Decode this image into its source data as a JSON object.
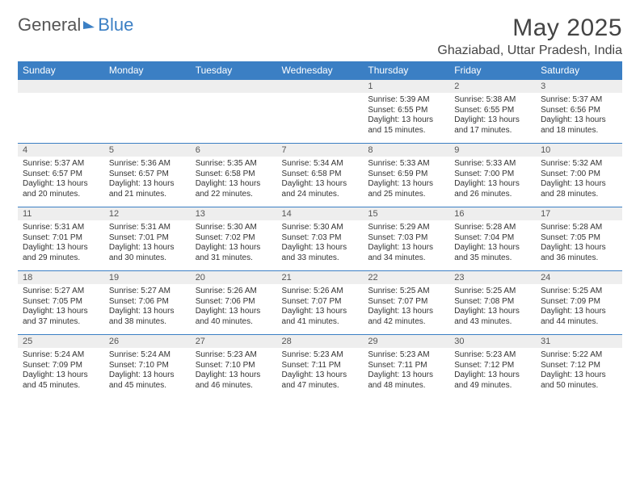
{
  "logo": {
    "text_a": "General",
    "text_b": "Blue"
  },
  "title": "May 2025",
  "location": "Ghaziabad, Uttar Pradesh, India",
  "weekdays": [
    "Sunday",
    "Monday",
    "Tuesday",
    "Wednesday",
    "Thursday",
    "Friday",
    "Saturday"
  ],
  "colors": {
    "header_bg": "#3b7fc4",
    "header_text": "#ffffff",
    "daynum_bg": "#eeeeee",
    "row_border": "#3b7fc4",
    "body_text": "#333333",
    "page_bg": "#ffffff"
  },
  "typography": {
    "title_fontsize": 30,
    "location_fontsize": 16,
    "weekday_fontsize": 12,
    "daynum_fontsize": 11,
    "cell_fontsize": 10
  },
  "layout": {
    "columns": 7,
    "rows": 5,
    "first_day_column_index": 4
  },
  "days": [
    {
      "n": 1,
      "sunrise": "5:39 AM",
      "sunset": "6:55 PM",
      "daylight": "13 hours and 15 minutes."
    },
    {
      "n": 2,
      "sunrise": "5:38 AM",
      "sunset": "6:55 PM",
      "daylight": "13 hours and 17 minutes."
    },
    {
      "n": 3,
      "sunrise": "5:37 AM",
      "sunset": "6:56 PM",
      "daylight": "13 hours and 18 minutes."
    },
    {
      "n": 4,
      "sunrise": "5:37 AM",
      "sunset": "6:57 PM",
      "daylight": "13 hours and 20 minutes."
    },
    {
      "n": 5,
      "sunrise": "5:36 AM",
      "sunset": "6:57 PM",
      "daylight": "13 hours and 21 minutes."
    },
    {
      "n": 6,
      "sunrise": "5:35 AM",
      "sunset": "6:58 PM",
      "daylight": "13 hours and 22 minutes."
    },
    {
      "n": 7,
      "sunrise": "5:34 AM",
      "sunset": "6:58 PM",
      "daylight": "13 hours and 24 minutes."
    },
    {
      "n": 8,
      "sunrise": "5:33 AM",
      "sunset": "6:59 PM",
      "daylight": "13 hours and 25 minutes."
    },
    {
      "n": 9,
      "sunrise": "5:33 AM",
      "sunset": "7:00 PM",
      "daylight": "13 hours and 26 minutes."
    },
    {
      "n": 10,
      "sunrise": "5:32 AM",
      "sunset": "7:00 PM",
      "daylight": "13 hours and 28 minutes."
    },
    {
      "n": 11,
      "sunrise": "5:31 AM",
      "sunset": "7:01 PM",
      "daylight": "13 hours and 29 minutes."
    },
    {
      "n": 12,
      "sunrise": "5:31 AM",
      "sunset": "7:01 PM",
      "daylight": "13 hours and 30 minutes."
    },
    {
      "n": 13,
      "sunrise": "5:30 AM",
      "sunset": "7:02 PM",
      "daylight": "13 hours and 31 minutes."
    },
    {
      "n": 14,
      "sunrise": "5:30 AM",
      "sunset": "7:03 PM",
      "daylight": "13 hours and 33 minutes."
    },
    {
      "n": 15,
      "sunrise": "5:29 AM",
      "sunset": "7:03 PM",
      "daylight": "13 hours and 34 minutes."
    },
    {
      "n": 16,
      "sunrise": "5:28 AM",
      "sunset": "7:04 PM",
      "daylight": "13 hours and 35 minutes."
    },
    {
      "n": 17,
      "sunrise": "5:28 AM",
      "sunset": "7:05 PM",
      "daylight": "13 hours and 36 minutes."
    },
    {
      "n": 18,
      "sunrise": "5:27 AM",
      "sunset": "7:05 PM",
      "daylight": "13 hours and 37 minutes."
    },
    {
      "n": 19,
      "sunrise": "5:27 AM",
      "sunset": "7:06 PM",
      "daylight": "13 hours and 38 minutes."
    },
    {
      "n": 20,
      "sunrise": "5:26 AM",
      "sunset": "7:06 PM",
      "daylight": "13 hours and 40 minutes."
    },
    {
      "n": 21,
      "sunrise": "5:26 AM",
      "sunset": "7:07 PM",
      "daylight": "13 hours and 41 minutes."
    },
    {
      "n": 22,
      "sunrise": "5:25 AM",
      "sunset": "7:07 PM",
      "daylight": "13 hours and 42 minutes."
    },
    {
      "n": 23,
      "sunrise": "5:25 AM",
      "sunset": "7:08 PM",
      "daylight": "13 hours and 43 minutes."
    },
    {
      "n": 24,
      "sunrise": "5:25 AM",
      "sunset": "7:09 PM",
      "daylight": "13 hours and 44 minutes."
    },
    {
      "n": 25,
      "sunrise": "5:24 AM",
      "sunset": "7:09 PM",
      "daylight": "13 hours and 45 minutes."
    },
    {
      "n": 26,
      "sunrise": "5:24 AM",
      "sunset": "7:10 PM",
      "daylight": "13 hours and 45 minutes."
    },
    {
      "n": 27,
      "sunrise": "5:23 AM",
      "sunset": "7:10 PM",
      "daylight": "13 hours and 46 minutes."
    },
    {
      "n": 28,
      "sunrise": "5:23 AM",
      "sunset": "7:11 PM",
      "daylight": "13 hours and 47 minutes."
    },
    {
      "n": 29,
      "sunrise": "5:23 AM",
      "sunset": "7:11 PM",
      "daylight": "13 hours and 48 minutes."
    },
    {
      "n": 30,
      "sunrise": "5:23 AM",
      "sunset": "7:12 PM",
      "daylight": "13 hours and 49 minutes."
    },
    {
      "n": 31,
      "sunrise": "5:22 AM",
      "sunset": "7:12 PM",
      "daylight": "13 hours and 50 minutes."
    }
  ],
  "labels": {
    "sunrise_prefix": "Sunrise: ",
    "sunset_prefix": "Sunset: ",
    "daylight_prefix": "Daylight: "
  }
}
